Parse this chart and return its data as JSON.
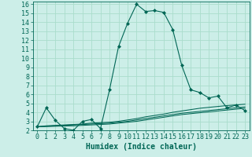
{
  "xlabel": "Humidex (Indice chaleur)",
  "background_color": "#cceee8",
  "grid_color": "#aaddcc",
  "line_color": "#006655",
  "xlim": [
    -0.5,
    23.5
  ],
  "ylim": [
    2,
    16.3
  ],
  "xticks": [
    0,
    1,
    2,
    3,
    4,
    5,
    6,
    7,
    8,
    9,
    10,
    11,
    12,
    13,
    14,
    15,
    16,
    17,
    18,
    19,
    20,
    21,
    22,
    23
  ],
  "yticks": [
    2,
    3,
    4,
    5,
    6,
    7,
    8,
    9,
    10,
    11,
    12,
    13,
    14,
    15,
    16
  ],
  "main_x": [
    0,
    1,
    2,
    3,
    4,
    5,
    6,
    7,
    8,
    9,
    10,
    11,
    12,
    13,
    14,
    15,
    16,
    17,
    18,
    19,
    20,
    21,
    22,
    23
  ],
  "main_y": [
    2.4,
    4.5,
    3.1,
    2.2,
    2.0,
    3.0,
    3.2,
    2.2,
    6.5,
    11.3,
    13.9,
    16.0,
    15.2,
    15.3,
    15.1,
    13.2,
    9.2,
    6.5,
    6.2,
    5.6,
    5.8,
    4.5,
    4.8,
    4.2
  ],
  "line2_x": [
    0,
    1,
    2,
    3,
    4,
    5,
    6,
    7,
    8,
    9,
    10,
    11,
    12,
    13,
    14,
    15,
    16,
    17,
    18,
    19,
    20,
    21,
    22,
    23
  ],
  "line2_y": [
    2.4,
    2.5,
    2.55,
    2.6,
    2.65,
    2.7,
    2.8,
    2.85,
    2.9,
    3.0,
    3.15,
    3.3,
    3.5,
    3.65,
    3.8,
    4.0,
    4.15,
    4.3,
    4.45,
    4.55,
    4.65,
    4.75,
    4.82,
    4.9
  ],
  "line3_x": [
    0,
    1,
    2,
    3,
    4,
    5,
    6,
    7,
    8,
    9,
    10,
    11,
    12,
    13,
    14,
    15,
    16,
    17,
    18,
    19,
    20,
    21,
    22,
    23
  ],
  "line3_y": [
    2.4,
    2.45,
    2.5,
    2.55,
    2.6,
    2.65,
    2.7,
    2.75,
    2.8,
    2.9,
    3.0,
    3.15,
    3.3,
    3.45,
    3.6,
    3.75,
    3.9,
    4.0,
    4.1,
    4.2,
    4.3,
    4.4,
    4.5,
    4.6
  ],
  "line4_x": [
    0,
    1,
    2,
    3,
    4,
    5,
    6,
    7,
    8,
    9,
    10,
    11,
    12,
    13,
    14,
    15,
    16,
    17,
    18,
    19,
    20,
    21,
    22,
    23
  ],
  "line4_y": [
    2.4,
    2.42,
    2.45,
    2.48,
    2.5,
    2.55,
    2.6,
    2.65,
    2.7,
    2.8,
    2.9,
    3.0,
    3.15,
    3.3,
    3.45,
    3.6,
    3.75,
    3.85,
    3.95,
    4.05,
    4.15,
    4.25,
    4.35,
    4.45
  ],
  "xlabel_fontsize": 7,
  "tick_fontsize": 6
}
